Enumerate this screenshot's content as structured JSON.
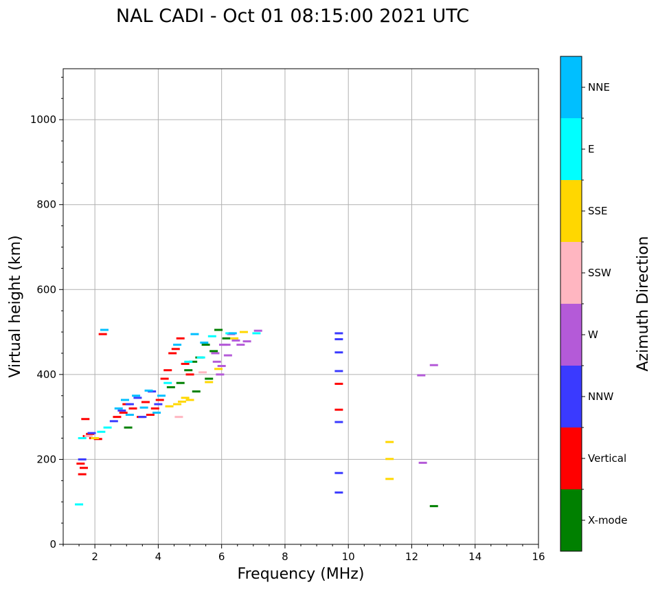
{
  "chart_data": {
    "type": "scatter",
    "title": "NAL CADI - Oct 01 08:15:00 2021 UTC",
    "xlabel": "Frequency (MHz)",
    "ylabel": "Virtual height (km)",
    "xlim": [
      1,
      16
    ],
    "ylim": [
      0,
      1120
    ],
    "x_ticks": [
      2,
      4,
      6,
      8,
      10,
      12,
      14,
      16
    ],
    "y_ticks": [
      0,
      200,
      400,
      600,
      800,
      1000
    ],
    "grid": true,
    "colorbar": {
      "label": "Azimuth Direction",
      "categories": [
        {
          "name": "X-mode",
          "color": "#008000"
        },
        {
          "name": "Vertical",
          "color": "#ff0000"
        },
        {
          "name": "NNW",
          "color": "#3a3aff"
        },
        {
          "name": "W",
          "color": "#b45ad8"
        },
        {
          "name": "SSW",
          "color": "#ffb6c1"
        },
        {
          "name": "SSE",
          "color": "#ffd700"
        },
        {
          "name": "E",
          "color": "#00ffff"
        },
        {
          "name": "NNE",
          "color": "#00bfff"
        }
      ]
    },
    "series": [
      {
        "name": "Vertical",
        "points": [
          [
            1.55,
            190
          ],
          [
            1.6,
            165
          ],
          [
            1.65,
            180
          ],
          [
            1.7,
            295
          ],
          [
            1.75,
            255
          ],
          [
            1.85,
            260
          ],
          [
            1.95,
            250
          ],
          [
            2.1,
            248
          ],
          [
            2.25,
            495
          ],
          [
            2.7,
            300
          ],
          [
            2.9,
            310
          ],
          [
            3.0,
            330
          ],
          [
            3.2,
            320
          ],
          [
            3.45,
            300
          ],
          [
            3.6,
            335
          ],
          [
            3.75,
            305
          ],
          [
            3.9,
            320
          ],
          [
            4.05,
            340
          ],
          [
            4.2,
            390
          ],
          [
            4.3,
            410
          ],
          [
            4.45,
            450
          ],
          [
            4.55,
            460
          ],
          [
            4.7,
            485
          ],
          [
            4.85,
            425
          ],
          [
            5.0,
            400
          ],
          [
            9.7,
            378
          ],
          [
            9.7,
            317
          ]
        ]
      },
      {
        "name": "NNW",
        "points": [
          [
            1.6,
            200
          ],
          [
            1.9,
            262
          ],
          [
            2.6,
            290
          ],
          [
            2.85,
            315
          ],
          [
            3.1,
            330
          ],
          [
            3.35,
            345
          ],
          [
            3.5,
            300
          ],
          [
            3.8,
            360
          ],
          [
            4.0,
            330
          ],
          [
            9.7,
            497
          ],
          [
            9.7,
            483
          ],
          [
            9.7,
            452
          ],
          [
            9.7,
            408
          ],
          [
            9.7,
            288
          ],
          [
            9.7,
            168
          ],
          [
            9.7,
            122
          ]
        ]
      },
      {
        "name": "X-mode",
        "points": [
          [
            3.05,
            275
          ],
          [
            4.4,
            370
          ],
          [
            4.7,
            380
          ],
          [
            4.95,
            410
          ],
          [
            5.1,
            430
          ],
          [
            5.2,
            360
          ],
          [
            5.3,
            440
          ],
          [
            5.5,
            470
          ],
          [
            5.6,
            390
          ],
          [
            5.75,
            455
          ],
          [
            5.9,
            505
          ],
          [
            6.15,
            485
          ],
          [
            12.7,
            90
          ]
        ]
      },
      {
        "name": "W",
        "points": [
          [
            5.8,
            450
          ],
          [
            5.85,
            430
          ],
          [
            5.95,
            400
          ],
          [
            6.0,
            420
          ],
          [
            6.05,
            470
          ],
          [
            6.15,
            470
          ],
          [
            6.2,
            445
          ],
          [
            6.3,
            495
          ],
          [
            6.45,
            480
          ],
          [
            6.6,
            470
          ],
          [
            6.8,
            478
          ],
          [
            7.15,
            503
          ],
          [
            12.3,
            398
          ],
          [
            12.7,
            422
          ],
          [
            12.35,
            192
          ]
        ]
      },
      {
        "name": "SSE",
        "points": [
          [
            2.0,
            250
          ],
          [
            4.35,
            325
          ],
          [
            4.6,
            330
          ],
          [
            4.75,
            336
          ],
          [
            4.85,
            345
          ],
          [
            5.0,
            340
          ],
          [
            5.6,
            382
          ],
          [
            5.9,
            413
          ],
          [
            6.4,
            485
          ],
          [
            6.7,
            500
          ],
          [
            11.3,
            241
          ],
          [
            11.3,
            201
          ],
          [
            11.3,
            154
          ]
        ]
      },
      {
        "name": "E",
        "points": [
          [
            1.5,
            94
          ],
          [
            1.6,
            250
          ],
          [
            2.2,
            265
          ],
          [
            2.4,
            275
          ],
          [
            4.3,
            380
          ],
          [
            4.95,
            430
          ],
          [
            5.35,
            440
          ],
          [
            5.7,
            490
          ],
          [
            6.25,
            497
          ],
          [
            7.1,
            497
          ]
        ]
      },
      {
        "name": "NNE",
        "points": [
          [
            2.3,
            505
          ],
          [
            2.75,
            320
          ],
          [
            2.95,
            340
          ],
          [
            3.1,
            305
          ],
          [
            3.3,
            350
          ],
          [
            3.55,
            322
          ],
          [
            3.7,
            362
          ],
          [
            3.95,
            310
          ],
          [
            4.1,
            350
          ],
          [
            4.6,
            470
          ],
          [
            5.15,
            495
          ],
          [
            5.45,
            475
          ],
          [
            6.35,
            497
          ]
        ]
      },
      {
        "name": "SSW",
        "points": [
          [
            1.8,
            255
          ],
          [
            4.65,
            300
          ],
          [
            5.4,
            405
          ]
        ]
      }
    ]
  }
}
